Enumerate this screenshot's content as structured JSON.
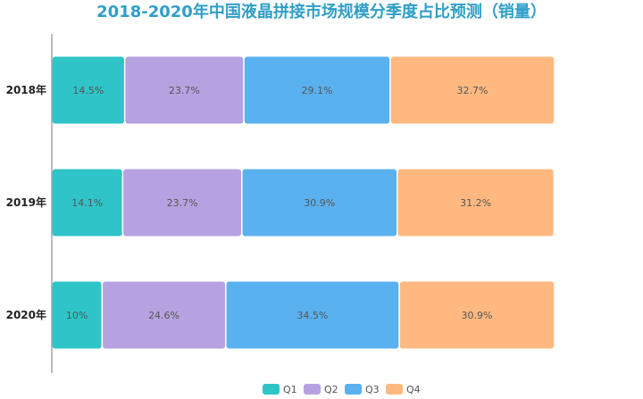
{
  "chart_data": {
    "type": "bar",
    "orientation": "horizontal",
    "stacked": true,
    "percent_stacked": true,
    "title": "2018-2020年中国液晶拼接市场规模分季度占比预测（销量）",
    "categories": [
      "2018年",
      "2019年",
      "2020年"
    ],
    "series": [
      {
        "name": "Q1",
        "color": "#2fc4c8",
        "values": [
          14.5,
          14.1,
          10
        ],
        "labels": [
          "14.5%",
          "14.1%",
          "10%"
        ]
      },
      {
        "name": "Q2",
        "color": "#b6a2e0",
        "values": [
          23.7,
          23.7,
          24.6
        ],
        "labels": [
          "23.7%",
          "23.7%",
          "24.6%"
        ]
      },
      {
        "name": "Q3",
        "color": "#5ab1ef",
        "values": [
          29.1,
          30.9,
          34.5
        ],
        "labels": [
          "29.1%",
          "30.9%",
          "34.5%"
        ]
      },
      {
        "name": "Q4",
        "color": "#ffb980",
        "values": [
          32.7,
          31.2,
          30.9
        ],
        "labels": [
          "32.7%",
          "31.2%",
          "30.9%"
        ]
      }
    ],
    "xlim": [
      0,
      100
    ],
    "grid": false,
    "legend_position": "bottom"
  }
}
